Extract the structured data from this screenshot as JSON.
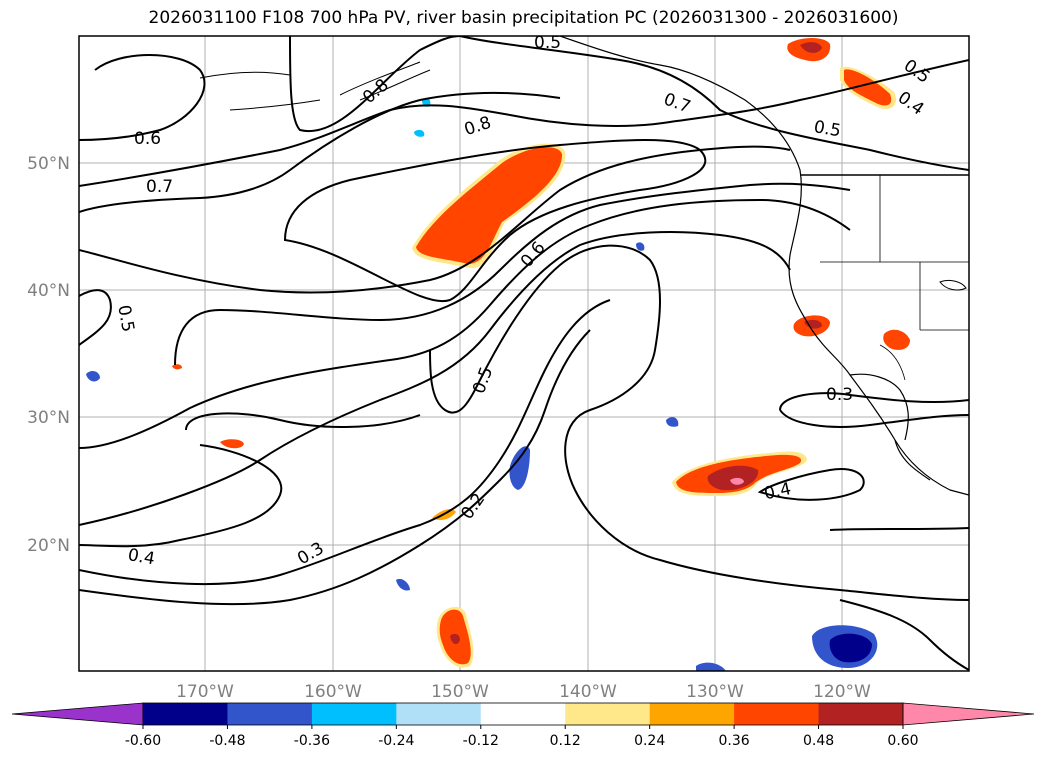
{
  "title": "2026031100 F108 700 hPa PV, river basin precipitation PC (2026031300 - 2026031600)",
  "map": {
    "lon_ticks": [
      "170°W",
      "160°W",
      "150°W",
      "140°W",
      "130°W",
      "120°W"
    ],
    "lat_ticks": [
      "50°N",
      "40°N",
      "30°N",
      "20°N"
    ],
    "contour_labels": [
      "0.5",
      "0.8",
      "0.6",
      "0.7",
      "0.8",
      "0.7",
      "0.5",
      "0.5",
      "0.4",
      "0.6",
      "0.5",
      "0.5",
      "0.3",
      "0.4",
      "0.2",
      "0.3",
      "0.4"
    ],
    "colors": {
      "contour": "#000000",
      "grid": "#b0b0b0",
      "coast": "#000000"
    }
  },
  "colorbar": {
    "levels": [
      "-0.60",
      "-0.48",
      "-0.36",
      "-0.24",
      "-0.12",
      "0.12",
      "0.24",
      "0.36",
      "0.48",
      "0.60"
    ],
    "colors": [
      "#9933cc",
      "#00008b",
      "#3355cc",
      "#00bfff",
      "#b0e0f8",
      "#ffffff",
      "#ffe88a",
      "#ffa500",
      "#ff4500",
      "#b22222",
      "#ff88aa"
    ]
  }
}
